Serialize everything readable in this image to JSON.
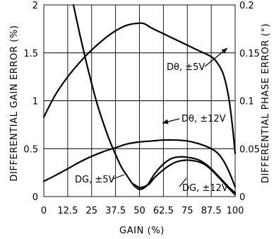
{
  "chart_data": {
    "type": "line",
    "xlabel": "GAIN (%)",
    "ylabel_left": "DIFFERENTIAL GAIN ERROR (%)",
    "ylabel_right": "DIFFERENTIAL PHASE ERROR (°)",
    "xlim": [
      0,
      100
    ],
    "ylim_left": [
      0,
      2
    ],
    "ylim_right": [
      0,
      0.2
    ],
    "grid": true,
    "x_ticks": [
      "0",
      "12.5",
      "25",
      "37.5",
      "50",
      "62.5",
      "75",
      "87.5",
      "100"
    ],
    "y_left_ticks": [
      "0",
      "0.5",
      "1",
      "1.5",
      "2"
    ],
    "y_right_ticks": [
      "0",
      "0.05",
      "0.1",
      "0.15",
      "0.2"
    ],
    "series": [
      {
        "name": "Dθ, ±5V",
        "axis": "right",
        "x": [
          0,
          6,
          12.5,
          18.75,
          25,
          31.25,
          37.5,
          43.75,
          50,
          53,
          56.25,
          62.5,
          68.75,
          75,
          81.25,
          87.5,
          90.5,
          93.75,
          96.5,
          98.5,
          100
        ],
        "y": [
          0.083,
          0.106,
          0.125,
          0.14,
          0.153,
          0.164,
          0.173,
          0.179,
          0.181,
          0.18,
          0.176,
          0.17,
          0.164,
          0.158,
          0.152,
          0.146,
          0.14,
          0.128,
          0.105,
          0.075,
          0.045
        ]
      },
      {
        "name": "Dθ, ±12V",
        "axis": "right",
        "x": [
          0,
          6,
          12.5,
          18.75,
          25,
          31.25,
          37.5,
          43.75,
          50,
          56.25,
          62.5,
          68.75,
          75,
          81.25,
          87.5,
          91,
          94,
          97,
          100
        ],
        "y": [
          0.016,
          0.022,
          0.029,
          0.036,
          0.042,
          0.047,
          0.051,
          0.055,
          0.057,
          0.058,
          0.059,
          0.059,
          0.058,
          0.055,
          0.05,
          0.045,
          0.037,
          0.025,
          0.01
        ]
      },
      {
        "name": "DG, ±5V",
        "axis": "left",
        "x": [
          15.5,
          18.75,
          22,
          25,
          28,
          31.25,
          34.5,
          37.5,
          40.5,
          43.75,
          46.5,
          48.5,
          50,
          52,
          54.5,
          58,
          62.5,
          66,
          69,
          72,
          75,
          78,
          81.25,
          84.5,
          87.5,
          90.5,
          93.75,
          96.5,
          100
        ],
        "y": [
          2.0,
          1.7,
          1.42,
          1.18,
          0.96,
          0.76,
          0.58,
          0.44,
          0.31,
          0.21,
          0.13,
          0.09,
          0.075,
          0.085,
          0.13,
          0.24,
          0.34,
          0.39,
          0.41,
          0.415,
          0.41,
          0.4,
          0.38,
          0.34,
          0.29,
          0.23,
          0.16,
          0.1,
          0.04
        ]
      },
      {
        "name": "DG, ±12V",
        "axis": "left",
        "x": [
          46,
          48.5,
          50,
          52,
          55,
          58,
          62.5,
          66,
          69,
          72,
          75,
          78,
          81.25,
          84.5,
          87.5,
          90.5,
          93.75,
          96.5,
          100
        ],
        "y": [
          0.14,
          0.11,
          0.095,
          0.1,
          0.13,
          0.2,
          0.28,
          0.33,
          0.36,
          0.375,
          0.38,
          0.375,
          0.36,
          0.33,
          0.28,
          0.22,
          0.15,
          0.09,
          0.02
        ]
      }
    ],
    "annotations": [
      {
        "text": "Dθ, ±5V",
        "series": "Dθ, ±5V"
      },
      {
        "text": "Dθ, ±12V",
        "series": "Dθ, ±12V"
      },
      {
        "text": "DG, ±5V",
        "series": "DG, ±5V"
      },
      {
        "text": "DG, ±12V",
        "series": "DG, ±12V"
      }
    ]
  }
}
